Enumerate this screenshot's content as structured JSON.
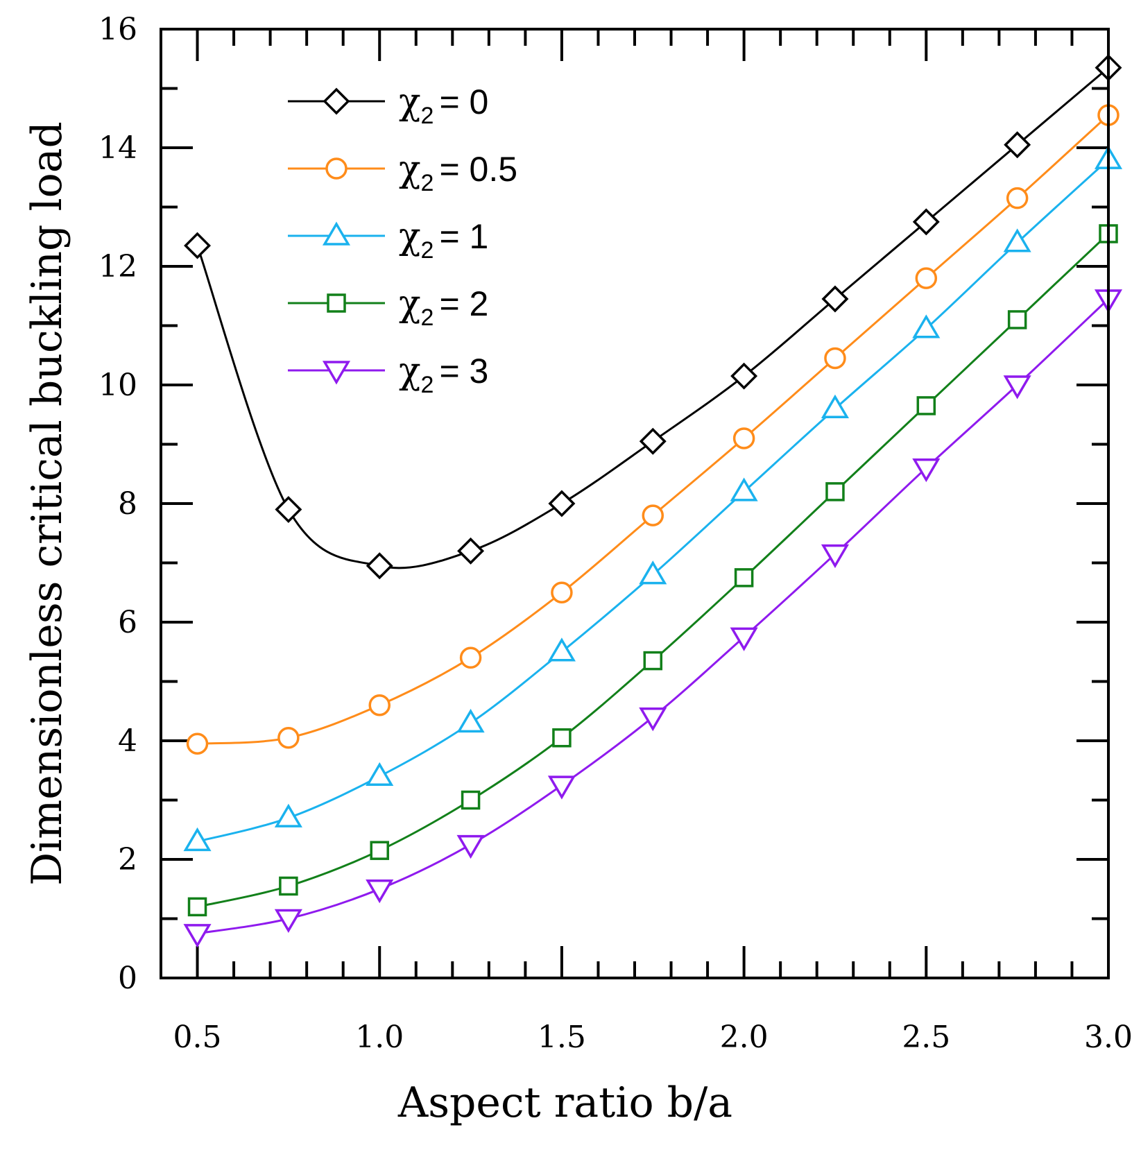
{
  "chart_data": {
    "type": "line",
    "title": "",
    "xlabel": "Aspect ratio b/a",
    "ylabel": "Dimensionless critical buckling load",
    "xlim": [
      0.4,
      3.0
    ],
    "ylim": [
      0,
      16
    ],
    "xticks": [
      0.5,
      1.0,
      1.5,
      2.0,
      2.5,
      3.0
    ],
    "xtick_labels": [
      "0.5",
      "1.0",
      "1.5",
      "2.0",
      "2.5",
      "3.0"
    ],
    "yticks": [
      0,
      2,
      4,
      6,
      8,
      10,
      12,
      14,
      16
    ],
    "ytick_labels": [
      "0",
      "2",
      "4",
      "6",
      "8",
      "10",
      "12",
      "14",
      "16"
    ],
    "grid": false,
    "legend_position": "top-left",
    "x": [
      0.5,
      0.75,
      1.0,
      1.25,
      1.5,
      1.75,
      2.0,
      2.25,
      2.5,
      2.75,
      3.0
    ],
    "series": [
      {
        "name": "χ2 = 0",
        "legend_symbol": "χ",
        "legend_sub": "2",
        "legend_value": "= 0",
        "color": "#000000",
        "marker": "diamond",
        "values": [
          12.35,
          7.9,
          6.95,
          7.2,
          8.0,
          9.05,
          10.15,
          11.45,
          12.75,
          14.05,
          15.35
        ]
      },
      {
        "name": "χ2 = 0.5",
        "legend_symbol": "χ",
        "legend_sub": "2",
        "legend_value": "= 0.5",
        "color": "#ff8c1a",
        "marker": "circle",
        "values": [
          3.95,
          4.05,
          4.6,
          5.4,
          6.5,
          7.8,
          9.1,
          10.45,
          11.8,
          13.15,
          14.55
        ]
      },
      {
        "name": "χ2 = 1",
        "legend_symbol": "χ",
        "legend_sub": "2",
        "legend_value": "= 1",
        "color": "#1ab2ee",
        "marker": "triangle-up",
        "values": [
          2.3,
          2.7,
          3.4,
          4.3,
          5.5,
          6.8,
          8.2,
          9.6,
          10.95,
          12.4,
          13.8
        ]
      },
      {
        "name": "χ2 = 2",
        "legend_symbol": "χ",
        "legend_sub": "2",
        "legend_value": "= 2",
        "color": "#12801a",
        "marker": "square",
        "values": [
          1.2,
          1.55,
          2.15,
          3.0,
          4.05,
          5.35,
          6.75,
          8.2,
          9.65,
          11.1,
          12.55
        ]
      },
      {
        "name": "χ2 = 3",
        "legend_symbol": "χ",
        "legend_sub": "2",
        "legend_value": "= 3",
        "color": "#8f1aee",
        "marker": "triangle-down",
        "values": [
          0.75,
          1.0,
          1.5,
          2.25,
          3.25,
          4.4,
          5.75,
          7.15,
          8.6,
          10.0,
          11.45
        ]
      }
    ]
  }
}
